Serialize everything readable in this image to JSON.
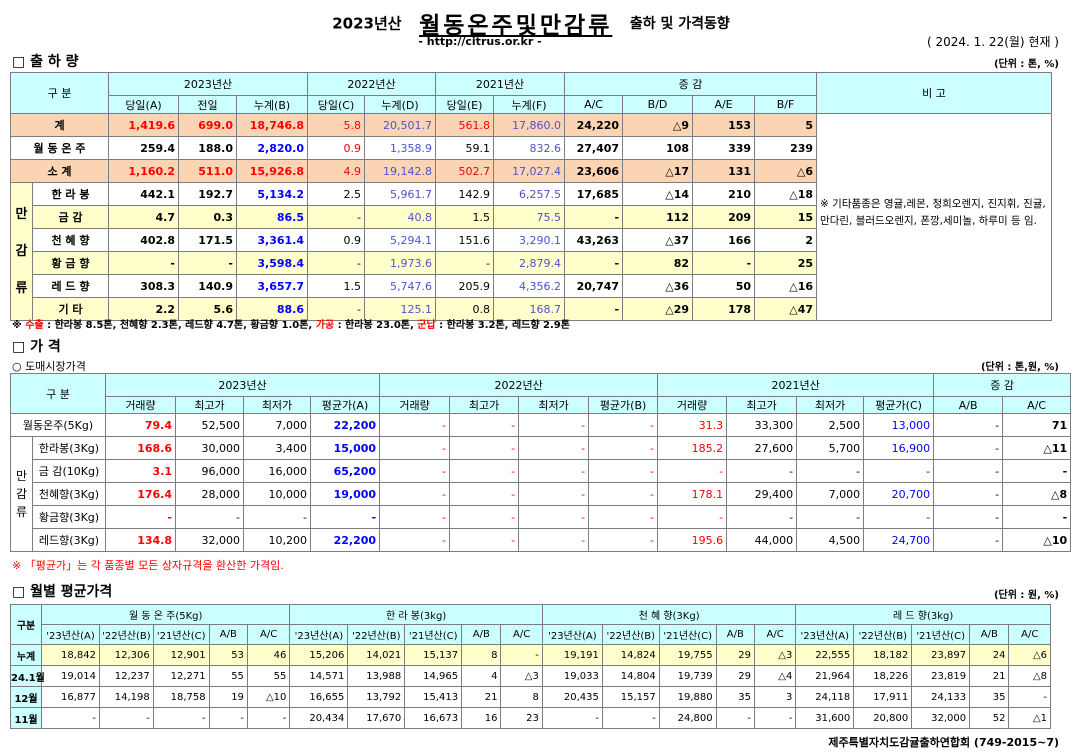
{
  "header": {
    "title_year": "2023년산",
    "title_main": "월동온주및만감류",
    "title_tail": "출하 및 가격동향",
    "url": "- http://citrus.or.kr -",
    "date": "( 2024.  1. 22(월) 현재 )"
  },
  "s1": {
    "title": "□ 출 하 량",
    "unit": "(단위 : 톤, %)",
    "corner": "구    분",
    "h2023": "2023년산",
    "h2022": "2022년산",
    "h2021": "2021년산",
    "hdiff": "증      감",
    "hnote": "비 고",
    "sub": [
      "당일(A)",
      "전일",
      "누계(B)",
      "당일(C)",
      "누계(D)",
      "당일(E)",
      "누계(F)",
      "A/C",
      "B/D",
      "A/E",
      "B/F"
    ],
    "gyul": "만감류",
    "rows": [
      {
        "label": "계",
        "v": [
          "1,419.6",
          "699.0",
          "18,746.8",
          "5.8",
          "20,501.7",
          "561.8",
          "17,860.0",
          "24,220",
          "△9",
          "153",
          "5"
        ]
      },
      {
        "label": "월 동 온 주",
        "v": [
          "259.4",
          "188.0",
          "2,820.0",
          "0.9",
          "1,358.9",
          "59.1",
          "832.6",
          "27,407",
          "108",
          "339",
          "239"
        ]
      },
      {
        "label": "소    계",
        "v": [
          "1,160.2",
          "511.0",
          "15,926.8",
          "4.9",
          "19,142.8",
          "502.7",
          "17,027.4",
          "23,606",
          "△17",
          "131",
          "△6"
        ]
      },
      {
        "label": "한 라 봉",
        "v": [
          "442.1",
          "192.7",
          "5,134.2",
          "2.5",
          "5,961.7",
          "142.9",
          "6,257.5",
          "17,685",
          "△14",
          "210",
          "△18"
        ]
      },
      {
        "label": "금    감",
        "v": [
          "4.7",
          "0.3",
          "86.5",
          "-",
          "40.8",
          "1.5",
          "75.5",
          "-",
          "112",
          "209",
          "15"
        ]
      },
      {
        "label": "천 혜 향",
        "v": [
          "402.8",
          "171.5",
          "3,361.4",
          "0.9",
          "5,294.1",
          "151.6",
          "3,290.1",
          "43,263",
          "△37",
          "166",
          "2"
        ]
      },
      {
        "label": "황 금 향",
        "v": [
          "-",
          "-",
          "3,598.4",
          "-",
          "1,973.6",
          "-",
          "2,879.4",
          "-",
          "82",
          "-",
          "25"
        ]
      },
      {
        "label": "레 드 향",
        "v": [
          "308.3",
          "140.9",
          "3,657.7",
          "1.5",
          "5,747.6",
          "205.9",
          "4,356.2",
          "20,747",
          "△36",
          "50",
          "△16"
        ]
      },
      {
        "label": "기    타",
        "v": [
          "2.2",
          "5.6",
          "88.6",
          "-",
          "125.1",
          "0.8",
          "168.7",
          "-",
          "△29",
          "178",
          "△47"
        ]
      }
    ],
    "remark": "※ 기타품종은 영귤,레몬, 청희오렌지, 진지휘, 진귤, 만다린, 블러드오렌지, 폰깡,세미놀, 하루미 등 임.",
    "foot_a": "※ ",
    "foot_b": "수출",
    "foot_c": " : 한라봉 8.5톤, 천혜향 2.3톤, 레드향 4.7톤, 황금향 1.0톤, ",
    "foot_d": "가공",
    "foot_e": " : 한라봉 23.0톤, ",
    "foot_f": "군납",
    "foot_g": " : 한라봉 3.2톤, 레드향 2.9톤"
  },
  "s2": {
    "title": "□ 가    격",
    "subtitle": "○ 도매시장가격",
    "unit": "(단위 : 톤,원, %)",
    "corner": "구    분",
    "h2023": "2023년산",
    "h2022": "2022년산",
    "h2021": "2021년산",
    "hdiff": "증    감",
    "sub": [
      "거래량",
      "최고가",
      "최저가",
      "평균가(A)",
      "거래량",
      "최고가",
      "최저가",
      "평균가(B)",
      "거래량",
      "최고가",
      "최저가",
      "평균가(C)",
      "A/B",
      "A/C"
    ],
    "gyul": "만감류",
    "rows": [
      {
        "label": "월동온주(5Kg)",
        "v": [
          "79.4",
          "52,500",
          "7,000",
          "22,200",
          "-",
          "-",
          "-",
          "-",
          "31.3",
          "33,300",
          "2,500",
          "13,000",
          "-",
          "71"
        ]
      },
      {
        "label": "한라봉(3Kg)",
        "v": [
          "168.6",
          "30,000",
          "3,400",
          "15,000",
          "-",
          "-",
          "-",
          "-",
          "185.2",
          "27,600",
          "5,700",
          "16,900",
          "-",
          "△11"
        ]
      },
      {
        "label": "금 감(10Kg)",
        "v": [
          "3.1",
          "96,000",
          "16,000",
          "65,200",
          "-",
          "-",
          "-",
          "-",
          "-",
          "-",
          "-",
          "-",
          "-",
          "-"
        ]
      },
      {
        "label": "천혜향(3Kg)",
        "v": [
          "176.4",
          "28,000",
          "10,000",
          "19,000",
          "-",
          "-",
          "-",
          "-",
          "178.1",
          "29,400",
          "7,000",
          "20,700",
          "-",
          "△8"
        ]
      },
      {
        "label": "황금향(3Kg)",
        "v": [
          "-",
          "-",
          "-",
          "-",
          "-",
          "-",
          "-",
          "-",
          "-",
          "-",
          "-",
          "-",
          "-",
          "-"
        ]
      },
      {
        "label": "레드향(3Kg)",
        "v": [
          "134.8",
          "32,000",
          "10,200",
          "22,200",
          "-",
          "-",
          "-",
          "-",
          "195.6",
          "44,000",
          "4,500",
          "24,700",
          "-",
          "△10"
        ]
      }
    ],
    "foot": "※ 「평균가」는 각 품종별 모든 상자규격을 환산한 가격임."
  },
  "s3": {
    "title": "□ 월별 평균가격",
    "unit": "(단위 : 원, %)",
    "corner": "구분",
    "groups": [
      "월 동 온 주(5Kg)",
      "한  라  봉(3kg)",
      "천 혜 향(3Kg)",
      "레 드 향(3kg)"
    ],
    "sub": [
      "'23년산(A)",
      "'22년산(B)",
      "'21년산(C)",
      "A/B",
      "A/C"
    ],
    "rows": [
      {
        "label": "누계",
        "v": [
          "18,842",
          "12,306",
          "12,901",
          "53",
          "46",
          "15,206",
          "14,021",
          "15,137",
          "8",
          "-",
          "19,191",
          "14,824",
          "19,755",
          "29",
          "△3",
          "22,555",
          "18,182",
          "23,897",
          "24",
          "△6"
        ]
      },
      {
        "label": "24.1월",
        "v": [
          "19,014",
          "12,237",
          "12,271",
          "55",
          "55",
          "14,571",
          "13,988",
          "14,965",
          "4",
          "△3",
          "19,033",
          "14,804",
          "19,739",
          "29",
          "△4",
          "21,964",
          "18,226",
          "23,819",
          "21",
          "△8"
        ]
      },
      {
        "label": "12월",
        "v": [
          "16,877",
          "14,198",
          "18,758",
          "19",
          "△10",
          "16,655",
          "13,792",
          "15,413",
          "21",
          "8",
          "20,435",
          "15,157",
          "19,880",
          "35",
          "3",
          "24,118",
          "17,911",
          "24,133",
          "35",
          "-"
        ]
      },
      {
        "label": "11월",
        "v": [
          "-",
          "-",
          "-",
          "-",
          "-",
          "20,434",
          "17,670",
          "16,673",
          "16",
          "23",
          "-",
          "-",
          "24,800",
          "-",
          "-",
          "31,600",
          "20,800",
          "32,000",
          "52",
          "△1"
        ]
      }
    ],
    "org": "제주특별자치도감귤출하연합회 (749-2015~7)"
  },
  "colors": {
    "header": "#ccffff",
    "salmon": "#fbd4b4",
    "yellow": "#ffffcc",
    "red": "#ff0000",
    "blue": "#0000ff"
  }
}
